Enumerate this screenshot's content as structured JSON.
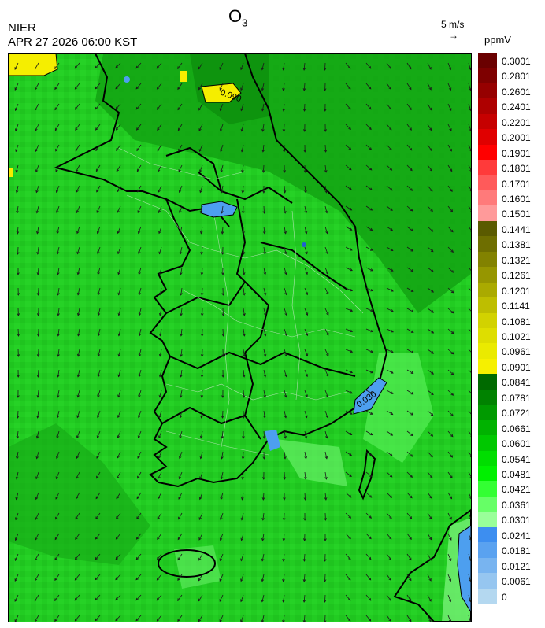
{
  "header": {
    "pollutant": "O",
    "pollutant_sub": "3",
    "agency": "NIER",
    "datetime": "APR 27 2026 06:00 KST",
    "wind_reference": "5 m/s",
    "wind_arrow": "→",
    "unit": "ppmV"
  },
  "map": {
    "contour_labels": [
      "0.090",
      "0.030"
    ],
    "colors": {
      "background_green": "#22cc22",
      "dark_green": "#118811",
      "light_green": "#66ee66",
      "yellow": "#f2ec00",
      "blue": "#4d9fef",
      "light_blue": "#9fcbea"
    }
  },
  "legend": {
    "labels": [
      "0.3001",
      "0.2801",
      "0.2601",
      "0.2401",
      "0.2201",
      "0.2001",
      "0.1901",
      "0.1801",
      "0.1701",
      "0.1601",
      "0.1501",
      "0.1441",
      "0.1381",
      "0.1321",
      "0.1261",
      "0.1201",
      "0.1141",
      "0.1081",
      "0.1021",
      "0.0961",
      "0.0901",
      "0.0841",
      "0.0781",
      "0.0721",
      "0.0661",
      "0.0601",
      "0.0541",
      "0.0481",
      "0.0421",
      "0.0361",
      "0.0301",
      "0.0241",
      "0.0181",
      "0.0121",
      "0.0061",
      "0"
    ],
    "colors": [
      "#6a0000",
      "#7e0000",
      "#960000",
      "#ae0000",
      "#c60000",
      "#e00000",
      "#ff0000",
      "#ff3a3a",
      "#ff5a5a",
      "#ff7a7a",
      "#ff9a9a",
      "#5a5a00",
      "#6e6e00",
      "#828200",
      "#969600",
      "#aaaa00",
      "#bebe00",
      "#d2d200",
      "#dede00",
      "#eaea00",
      "#f6f000",
      "#006a00",
      "#008200",
      "#009a00",
      "#00b200",
      "#00c800",
      "#00de00",
      "#00f000",
      "#33ff33",
      "#66ff66",
      "#99ff99",
      "#3d8ef0",
      "#5aa2f0",
      "#78b4f0",
      "#96c6f0",
      "#b4d8f0"
    ]
  }
}
